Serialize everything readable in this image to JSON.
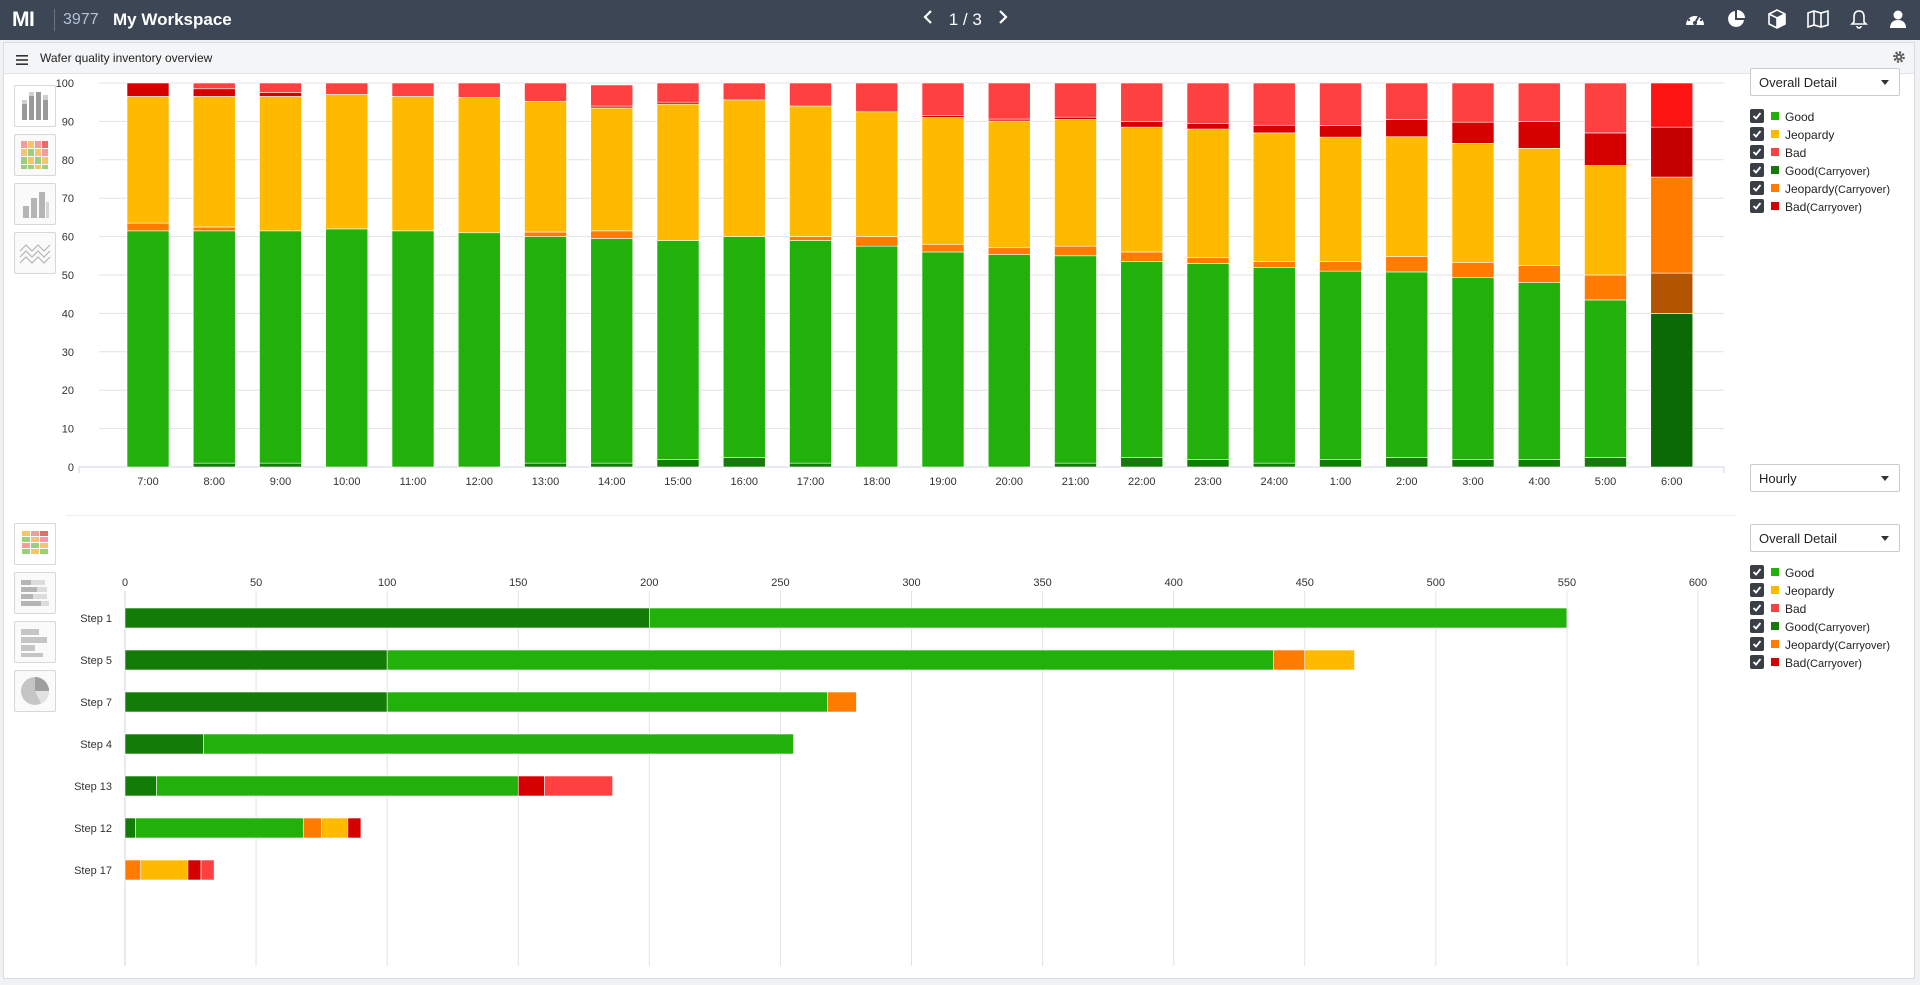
{
  "topbar": {
    "logo": "MI",
    "workspace_id": "3977",
    "workspace_name": "My Workspace",
    "page_indicator": "1 / 3"
  },
  "panel": {
    "title": "Wafer quality inventory overview"
  },
  "colors": {
    "good": "#22b00a",
    "jeopardy": "#ffba00",
    "bad": "#ff4040",
    "good_carryover": "#137c07",
    "jeopardy_carryover": "#ff7c00",
    "bad_carryover": "#d60000"
  },
  "hourly_controls": {
    "view_select": "Overall Detail",
    "interval_select": "Hourly",
    "legend": [
      {
        "label": "Good",
        "sub": "",
        "color": "#22b00a"
      },
      {
        "label": "Jeopardy",
        "sub": "",
        "color": "#ffba00"
      },
      {
        "label": "Bad",
        "sub": "",
        "color": "#ff4040"
      },
      {
        "label": "Good",
        "sub": "(Carryover)",
        "color": "#137c07"
      },
      {
        "label": "Jeopardy",
        "sub": "(Carryover)",
        "color": "#ff7c00"
      },
      {
        "label": "Bad",
        "sub": "(Carryover)",
        "color": "#d60000"
      }
    ]
  },
  "step_controls": {
    "view_select": "Overall Detail",
    "legend": [
      {
        "label": "Good",
        "sub": "",
        "color": "#22b00a"
      },
      {
        "label": "Jeopardy",
        "sub": "",
        "color": "#ffba00"
      },
      {
        "label": "Bad",
        "sub": "",
        "color": "#ff4040"
      },
      {
        "label": "Good",
        "sub": "(Carryover)",
        "color": "#137c07"
      },
      {
        "label": "Jeopardy",
        "sub": "(Carryover)",
        "color": "#ff7c00"
      },
      {
        "label": "Bad",
        "sub": "(Carryover)",
        "color": "#d60000"
      }
    ]
  },
  "chart_data": [
    {
      "type": "bar",
      "stacked": true,
      "percent": true,
      "orientation": "vertical",
      "title": "",
      "xlabel": "",
      "ylabel": "",
      "ylim": [
        0,
        100
      ],
      "yticks": [
        0,
        10,
        20,
        30,
        40,
        50,
        60,
        70,
        80,
        90,
        100
      ],
      "grid": true,
      "legend_position": "right",
      "categories": [
        "7:00",
        "8:00",
        "9:00",
        "10:00",
        "11:00",
        "12:00",
        "13:00",
        "14:00",
        "15:00",
        "16:00",
        "17:00",
        "18:00",
        "19:00",
        "20:00",
        "21:00",
        "22:00",
        "23:00",
        "24:00",
        "1:00",
        "2:00",
        "3:00",
        "4:00",
        "5:00",
        "6:00"
      ],
      "series": [
        {
          "name": "Good(Carryover)",
          "values": [
            0,
            1,
            1,
            0,
            0,
            0,
            1,
            1,
            2,
            2.5,
            1,
            0,
            0,
            0,
            1,
            2.5,
            2,
            1,
            2,
            2.5,
            2,
            2,
            2.5,
            1.5
          ]
        },
        {
          "name": "Good",
          "values": [
            61.5,
            60.5,
            60.5,
            62,
            61.5,
            61,
            59,
            58.5,
            57,
            57.5,
            58,
            57.5,
            56,
            55.3,
            54,
            51,
            51,
            51,
            49,
            48.3,
            47.3,
            46,
            41,
            0
          ]
        },
        {
          "name": "Jeopardy(Carryover)",
          "values": [
            2,
            1,
            0,
            0,
            0,
            0,
            1.2,
            2,
            0,
            0,
            1,
            2.5,
            2,
            1.8,
            2.5,
            2.5,
            1.5,
            1.5,
            2.5,
            4,
            4,
            4.5,
            6.5,
            0
          ]
        },
        {
          "name": "Jeopardy",
          "values": [
            33,
            34,
            35,
            35,
            35,
            35.2,
            34,
            32,
            35.5,
            35.6,
            34,
            32.5,
            33,
            33,
            33,
            32.5,
            33.5,
            33.5,
            32.4,
            31.2,
            31,
            30.5,
            28.5,
            0
          ]
        },
        {
          "name": "Bad(Carryover)",
          "values": [
            3.5,
            2,
            1,
            0,
            0,
            0,
            0,
            0.5,
            0.5,
            0,
            0,
            0,
            0.5,
            0.5,
            0.6,
            1.5,
            1.5,
            2,
            3,
            4.5,
            5.5,
            7,
            8.5,
            0
          ]
        },
        {
          "name": "Bad",
          "values": [
            0,
            1.5,
            2.5,
            3,
            3.5,
            3.8,
            4.8,
            5.5,
            5,
            4.4,
            6,
            7.5,
            8.5,
            9.4,
            8.9,
            10,
            10.5,
            11,
            11.1,
            9.5,
            10.2,
            10,
            13,
            0
          ]
        }
      ],
      "last_bar_override": {
        "category": "6:00",
        "values_bottom_to_top": [
          {
            "name": "Good(Carryover)",
            "value": 40
          },
          {
            "name": "Jeopardy(Carryover)",
            "value": 10.5
          },
          {
            "name": "Jeopardy",
            "value": 25
          },
          {
            "name": "Bad(Carryover)",
            "value": 13
          },
          {
            "name": "Bad",
            "value": 11.5
          }
        ]
      }
    },
    {
      "type": "bar",
      "stacked": true,
      "orientation": "horizontal",
      "title": "",
      "xlabel": "",
      "ylabel": "",
      "xlim": [
        0,
        600
      ],
      "xticks": [
        0,
        50,
        100,
        150,
        200,
        250,
        300,
        350,
        400,
        450,
        500,
        550,
        600
      ],
      "grid": true,
      "legend_position": "right",
      "categories": [
        "Step 1",
        "Step 5",
        "Step 7",
        "Step 4",
        "Step 13",
        "Step 12",
        "Step 17"
      ],
      "series": [
        {
          "name": "Good(Carryover)",
          "values": [
            200,
            100,
            100,
            30,
            12,
            4,
            0
          ]
        },
        {
          "name": "Good",
          "values": [
            350,
            338,
            168,
            225,
            138,
            64,
            0
          ]
        },
        {
          "name": "Jeopardy(Carryover)",
          "values": [
            0,
            12,
            11,
            0,
            0,
            7,
            6
          ]
        },
        {
          "name": "Jeopardy",
          "values": [
            0,
            19,
            0,
            0,
            0,
            10,
            18
          ]
        },
        {
          "name": "Bad(Carryover)",
          "values": [
            0,
            0,
            0,
            0,
            10,
            5,
            5
          ]
        },
        {
          "name": "Bad",
          "values": [
            0,
            0,
            0,
            0,
            26,
            0,
            5
          ]
        }
      ]
    }
  ]
}
